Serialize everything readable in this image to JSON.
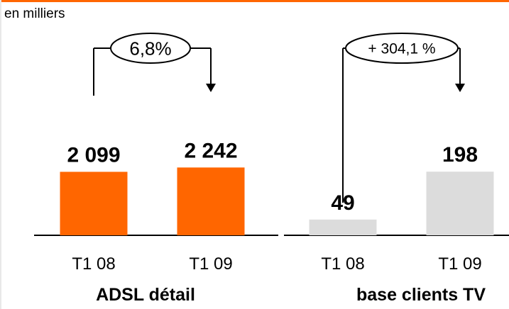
{
  "unit_label": "en milliers",
  "colors": {
    "accent": "#ff6600",
    "neutral_bar": "#dcdcdc",
    "frame": "#ff6600"
  },
  "chart_data": [
    {
      "type": "bar",
      "title": "ADSL détail",
      "categories": [
        "T1 08",
        "T1 09"
      ],
      "values": [
        2099,
        2242
      ],
      "value_labels": [
        "2 099",
        "2 242"
      ],
      "bar_color": "#ff6600",
      "growth_label": "6,8%",
      "ylim": [
        0,
        3000
      ]
    },
    {
      "type": "bar",
      "title": "base clients TV",
      "categories": [
        "T1 08",
        "T1 09"
      ],
      "values": [
        49,
        198
      ],
      "value_labels": [
        "49",
        "198"
      ],
      "bar_color": "#dcdcdc",
      "growth_label": "+ 304,1 %",
      "ylim": [
        0,
        300
      ]
    }
  ]
}
